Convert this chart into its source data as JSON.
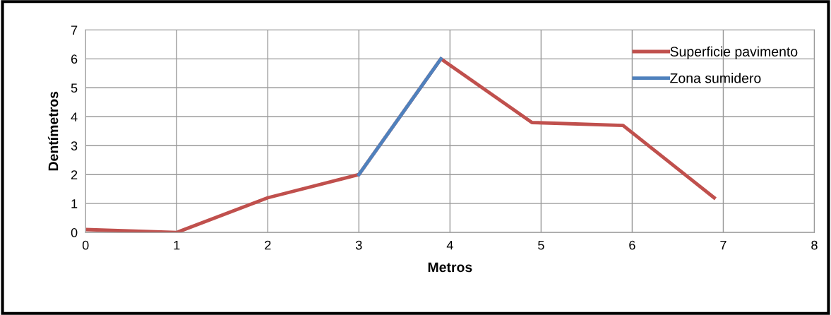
{
  "chart_data": {
    "type": "line",
    "xlabel": "Metros",
    "ylabel": "Dentímetros",
    "series": [
      {
        "name": "Superficie pavimento",
        "color": "#c0504d",
        "x": [
          0,
          1,
          2,
          3,
          3.9,
          4.9,
          5.9,
          6.9
        ],
        "values": [
          0.1,
          0,
          1.2,
          2,
          6,
          3.8,
          3.7,
          1.2
        ]
      },
      {
        "name": "Zona sumidero",
        "color": "#4f81bd",
        "x": [
          3,
          3.9
        ],
        "values": [
          2,
          6
        ]
      }
    ],
    "xlim": [
      0,
      8
    ],
    "xticks": [
      0,
      1,
      2,
      3,
      4,
      5,
      6,
      7,
      8
    ],
    "ylim": [
      0,
      7
    ],
    "yticks": [
      0,
      1,
      2,
      3,
      4,
      5,
      6,
      7
    ],
    "grid": true,
    "legend": "top right",
    "marker": "none",
    "line_style": "solid"
  }
}
